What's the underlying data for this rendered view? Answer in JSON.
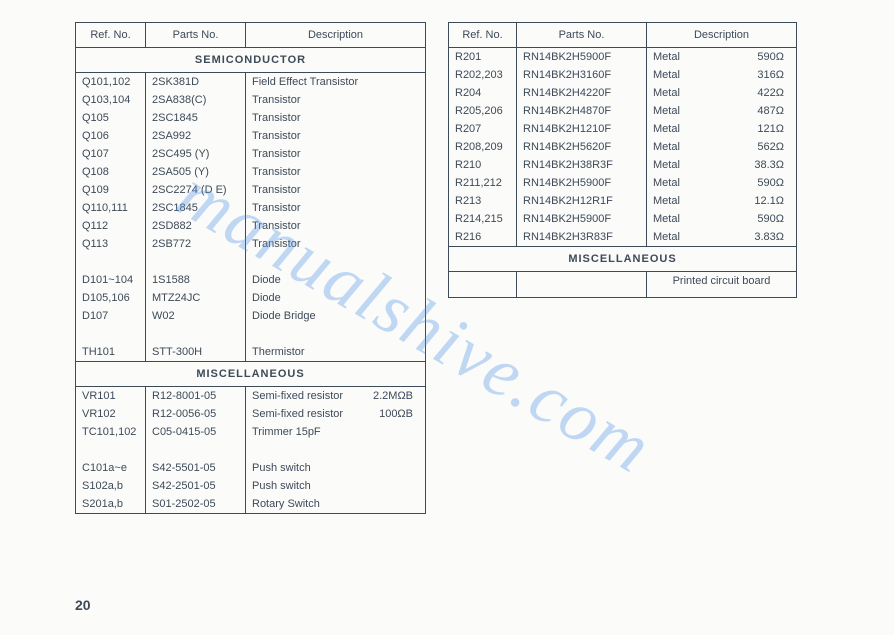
{
  "page_number": "20",
  "watermark": "manualshive.com",
  "left_table": {
    "headers": [
      "Ref. No.",
      "Parts No.",
      "Description"
    ],
    "sections": [
      {
        "title": "SEMICONDUCTOR",
        "groups": [
          [
            {
              "ref": "Q101,102",
              "parts": "2SK381D",
              "desc": "Field Effect Transistor"
            },
            {
              "ref": "Q103,104",
              "parts": "2SA838(C)",
              "desc": "Transistor"
            },
            {
              "ref": "Q105",
              "parts": "2SC1845",
              "desc": "Transistor"
            },
            {
              "ref": "Q106",
              "parts": "2SA992",
              "desc": "Transistor"
            },
            {
              "ref": "Q107",
              "parts": "2SC495 (Y)",
              "desc": "Transistor"
            },
            {
              "ref": "Q108",
              "parts": "2SA505 (Y)",
              "desc": "Transistor"
            },
            {
              "ref": "Q109",
              "parts": "2SC2274 (D E)",
              "desc": "Transistor"
            },
            {
              "ref": "Q110,111",
              "parts": "2SC1845",
              "desc": "Transistor"
            },
            {
              "ref": "Q112",
              "parts": "2SD882",
              "desc": "Transistor"
            },
            {
              "ref": "Q113",
              "parts": "2SB772",
              "desc": "Transistor"
            }
          ],
          [
            {
              "ref": "D101~104",
              "parts": "1S1588",
              "desc": "Diode"
            },
            {
              "ref": "D105,106",
              "parts": "MTZ24JC",
              "desc": "Diode"
            },
            {
              "ref": "D107",
              "parts": "W02",
              "desc": "Diode Bridge"
            }
          ],
          [
            {
              "ref": "TH101",
              "parts": "STT-300H",
              "desc": "Thermistor"
            }
          ]
        ]
      },
      {
        "title": "MISCELLANEOUS",
        "groups": [
          [
            {
              "ref": "VR101",
              "parts": "R12-8001-05",
              "desc": "Semi-fixed resistor",
              "val": "2.2MΩB"
            },
            {
              "ref": "VR102",
              "parts": "R12-0056-05",
              "desc": "Semi-fixed resistor",
              "val": "100ΩB"
            },
            {
              "ref": "TC101,102",
              "parts": "C05-0415-05",
              "desc": "Trimmer 15pF"
            }
          ],
          [
            {
              "ref": "C101a~e",
              "parts": "S42-5501-05",
              "desc": "Push switch"
            },
            {
              "ref": "S102a,b",
              "parts": "S42-2501-05",
              "desc": "Push switch"
            },
            {
              "ref": "S201a,b",
              "parts": "S01-2502-05",
              "desc": "Rotary Switch"
            }
          ]
        ]
      }
    ]
  },
  "right_table": {
    "headers": [
      "Ref. No.",
      "Parts No.",
      "Description"
    ],
    "rows": [
      {
        "ref": "R201",
        "parts": "RN14BK2H5900F",
        "desc": "Metal",
        "val": "590Ω"
      },
      {
        "ref": "R202,203",
        "parts": "RN14BK2H3160F",
        "desc": "Metal",
        "val": "316Ω"
      },
      {
        "ref": "R204",
        "parts": "RN14BK2H4220F",
        "desc": "Metal",
        "val": "422Ω"
      },
      {
        "ref": "R205,206",
        "parts": "RN14BK2H4870F",
        "desc": "Metal",
        "val": "487Ω"
      },
      {
        "ref": "R207",
        "parts": "RN14BK2H1210F",
        "desc": "Metal",
        "val": "121Ω"
      },
      {
        "ref": "R208,209",
        "parts": "RN14BK2H5620F",
        "desc": "Metal",
        "val": "562Ω"
      },
      {
        "ref": "R210",
        "parts": "RN14BK2H38R3F",
        "desc": "Metal",
        "val": "38.3Ω"
      },
      {
        "ref": "R211,212",
        "parts": "RN14BK2H5900F",
        "desc": "Metal",
        "val": "590Ω"
      },
      {
        "ref": "R213",
        "parts": "RN14BK2H12R1F",
        "desc": "Metal",
        "val": "12.1Ω"
      },
      {
        "ref": "R214,215",
        "parts": "RN14BK2H5900F",
        "desc": "Metal",
        "val": "590Ω"
      },
      {
        "ref": "R216",
        "parts": "RN14BK2H3R83F",
        "desc": "Metal",
        "val": "3.83Ω"
      }
    ],
    "misc_title": "MISCELLANEOUS",
    "misc_row": {
      "ref": "",
      "parts": "",
      "desc": "Printed circuit board"
    }
  }
}
